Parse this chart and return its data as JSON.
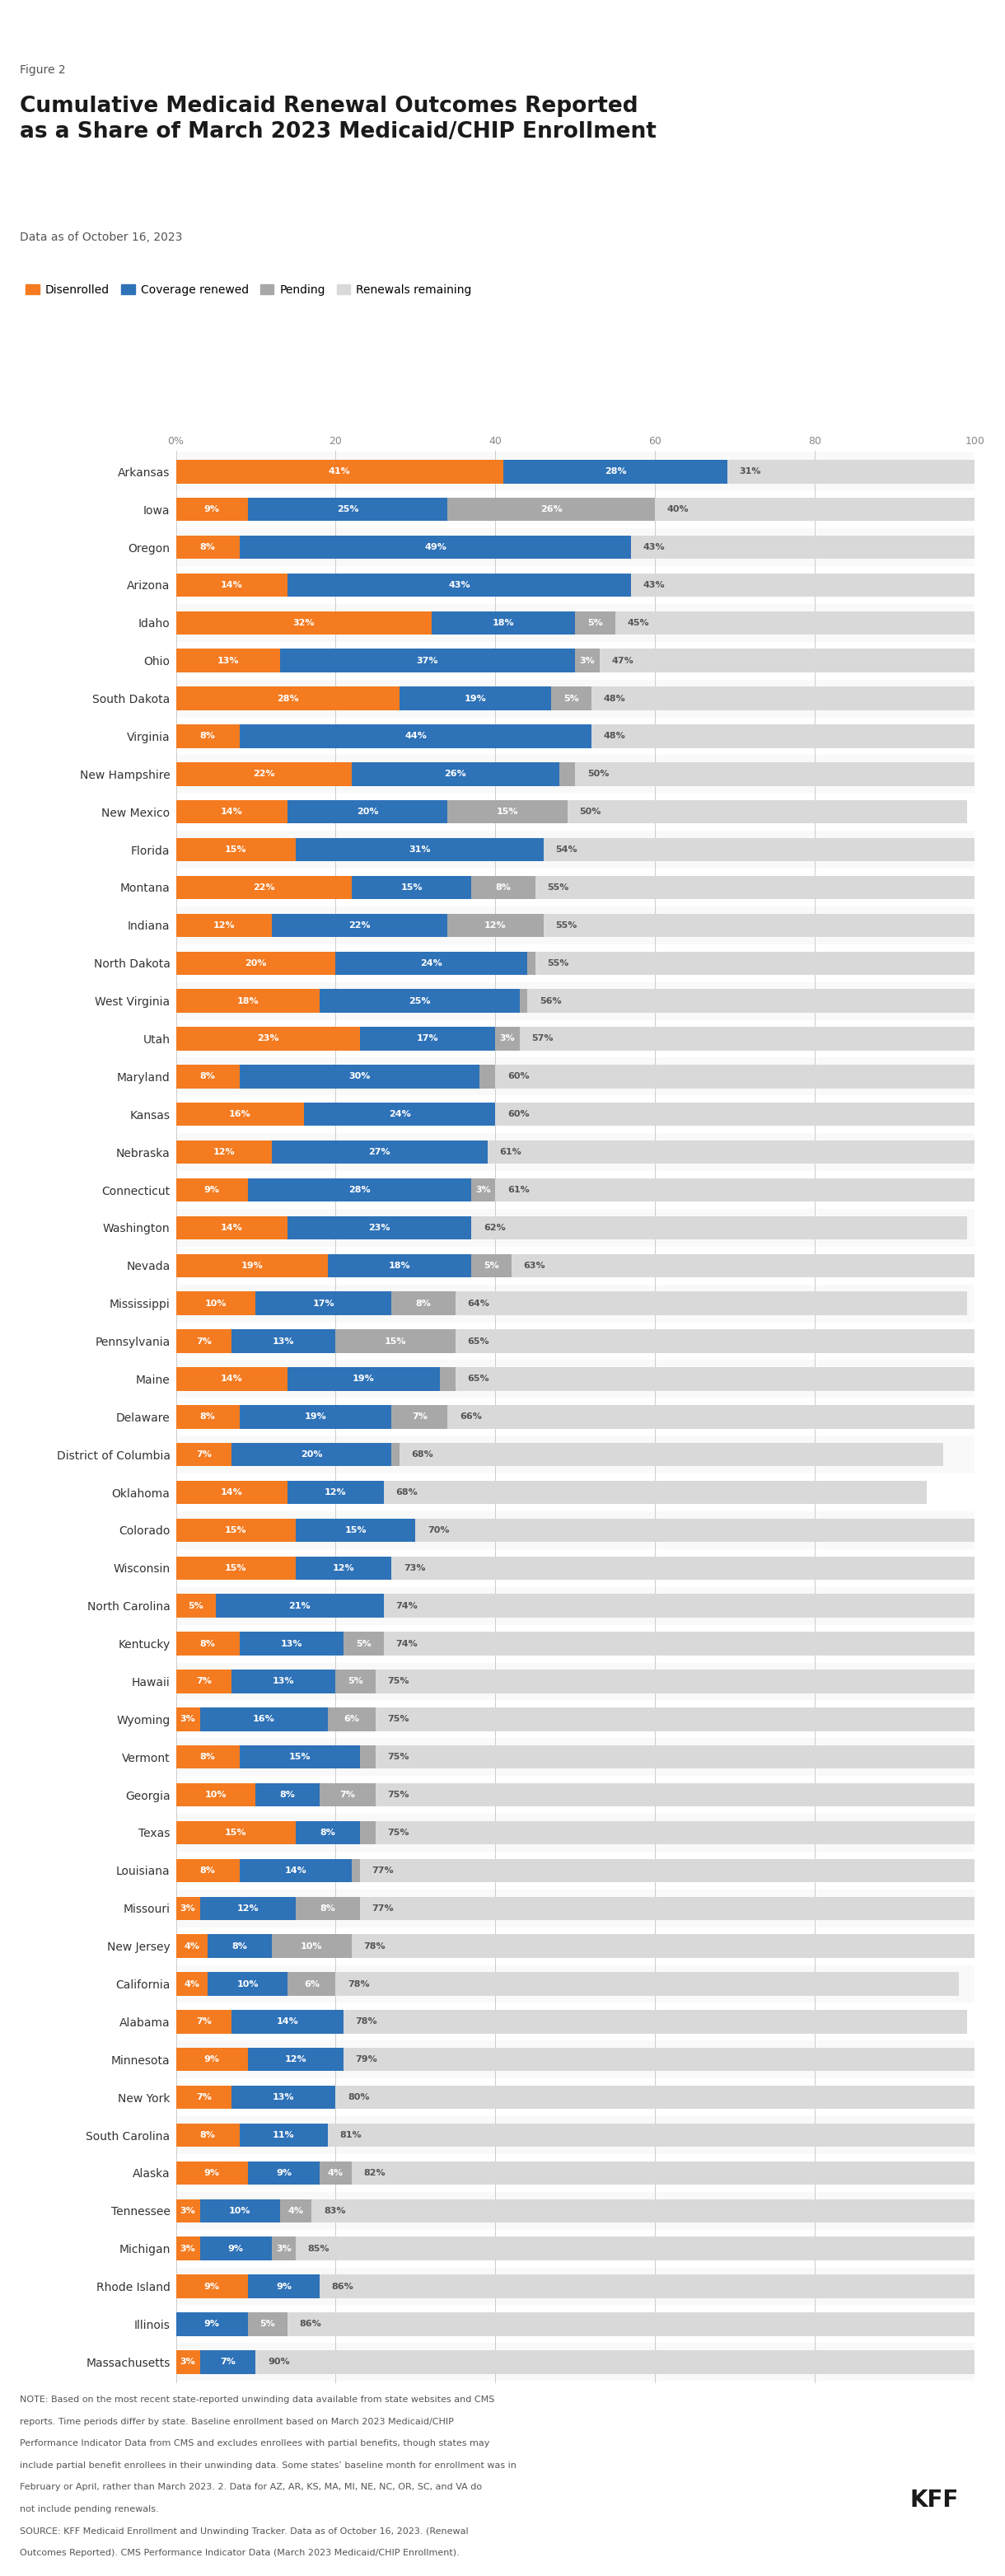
{
  "figure_label": "Figure 2",
  "title": "Cumulative Medicaid Renewal Outcomes Reported\nas a Share of March 2023 Medicaid/CHIP Enrollment",
  "subtitle": "Data as of October 16, 2023",
  "legend": [
    "Disenrolled",
    "Coverage renewed",
    "Pending",
    "Renewals remaining"
  ],
  "colors": {
    "disenrolled": "#F47B20",
    "renewed": "#2E72B8",
    "pending": "#A8A8A8",
    "remaining": "#D9D9D9"
  },
  "states": [
    "Arkansas",
    "Iowa",
    "Oregon",
    "Arizona",
    "Idaho",
    "Ohio",
    "South Dakota",
    "Virginia",
    "New Hampshire",
    "New Mexico",
    "Florida",
    "Montana",
    "Indiana",
    "North Dakota",
    "West Virginia",
    "Utah",
    "Maryland",
    "Kansas",
    "Nebraska",
    "Connecticut",
    "Washington",
    "Nevada",
    "Mississippi",
    "Pennsylvania",
    "Maine",
    "Delaware",
    "District of Columbia",
    "Oklahoma",
    "Colorado",
    "Wisconsin",
    "North Carolina",
    "Kentucky",
    "Hawaii",
    "Wyoming",
    "Vermont",
    "Georgia",
    "Texas",
    "Louisiana",
    "Missouri",
    "New Jersey",
    "California",
    "Alabama",
    "Minnesota",
    "New York",
    "South Carolina",
    "Alaska",
    "Tennessee",
    "Michigan",
    "Rhode Island",
    "Illinois",
    "Massachusetts"
  ],
  "disenrolled": [
    41,
    9,
    8,
    14,
    32,
    13,
    28,
    8,
    22,
    14,
    15,
    22,
    12,
    20,
    18,
    23,
    8,
    16,
    12,
    9,
    14,
    19,
    10,
    7,
    14,
    8,
    7,
    14,
    15,
    15,
    5,
    8,
    7,
    3,
    8,
    10,
    15,
    8,
    3,
    4,
    4,
    7,
    9,
    7,
    8,
    9,
    3,
    3,
    9,
    0,
    3
  ],
  "renewed": [
    28,
    25,
    49,
    43,
    18,
    37,
    19,
    44,
    26,
    20,
    31,
    15,
    22,
    24,
    25,
    17,
    30,
    24,
    27,
    28,
    23,
    18,
    17,
    13,
    19,
    19,
    20,
    12,
    15,
    12,
    21,
    13,
    13,
    16,
    15,
    8,
    8,
    14,
    12,
    8,
    10,
    14,
    12,
    13,
    11,
    9,
    10,
    9,
    9,
    9,
    7
  ],
  "pending": [
    0,
    26,
    0,
    0,
    5,
    3,
    5,
    0,
    2,
    15,
    0,
    8,
    12,
    1,
    1,
    3,
    2,
    0,
    0,
    3,
    0,
    5,
    8,
    15,
    2,
    7,
    1,
    0,
    0,
    0,
    0,
    5,
    5,
    6,
    2,
    7,
    2,
    1,
    8,
    10,
    6,
    0,
    0,
    0,
    0,
    4,
    4,
    3,
    0,
    5,
    0
  ],
  "remaining": [
    31,
    40,
    43,
    43,
    45,
    47,
    48,
    48,
    50,
    50,
    54,
    55,
    55,
    55,
    56,
    57,
    60,
    60,
    61,
    61,
    62,
    63,
    64,
    65,
    65,
    66,
    68,
    68,
    70,
    73,
    74,
    74,
    75,
    75,
    75,
    75,
    75,
    77,
    77,
    78,
    78,
    78,
    79,
    80,
    81,
    82,
    83,
    85,
    86,
    86,
    90
  ],
  "note1": "NOTE: Based on the most recent state-reported unwinding data available from state websites and CMS",
  "note2": "reports. Time periods differ by state. Baseline enrollment based on March 2023 Medicaid/CHIP",
  "note3": "Performance Indicator Data from CMS and excludes enrollees with partial benefits, though states may",
  "note4": "include partial benefit enrollees in their unwinding data. Some states’ baseline month for enrollment was in",
  "note5": "February or April, rather than March 2023. 2. Data for AZ, AR, KS, MA, MI, NE, NC, OR, SC, and VA do",
  "note6": "not include pending renewals.",
  "source1": "SOURCE: KFF Medicaid Enrollment and Unwinding Tracker. Data as of October 16, 2023. (Renewal",
  "source2": "Outcomes Reported). CMS Performance Indicator Data (March 2023 Medicaid/CHIP Enrollment)."
}
